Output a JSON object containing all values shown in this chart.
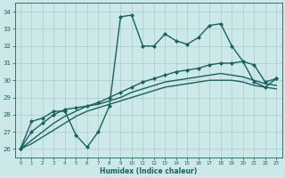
{
  "xlabel": "Humidex (Indice chaleur)",
  "background_color": "#cce8e8",
  "grid_color": "#aacccc",
  "line_color": "#1a6060",
  "xlim": [
    -0.5,
    23.5
  ],
  "ylim": [
    25.5,
    34.5
  ],
  "yticks": [
    26,
    27,
    28,
    29,
    30,
    31,
    32,
    33,
    34
  ],
  "xticks": [
    0,
    1,
    2,
    3,
    4,
    5,
    6,
    7,
    8,
    9,
    10,
    11,
    12,
    13,
    14,
    15,
    16,
    17,
    18,
    19,
    20,
    21,
    22,
    23
  ],
  "series": [
    [
      26.0,
      27.6,
      27.8,
      28.2,
      28.2,
      26.8,
      26.1,
      27.0,
      28.5,
      33.7,
      33.8,
      32.0,
      32.0,
      32.7,
      32.3,
      32.1,
      32.5,
      33.2,
      33.3,
      32.0,
      31.1,
      29.9,
      29.6,
      30.1
    ],
    [
      26.0,
      27.0,
      27.5,
      28.0,
      28.3,
      28.4,
      28.5,
      28.7,
      29.0,
      29.3,
      29.6,
      29.9,
      30.1,
      30.3,
      30.5,
      30.6,
      30.7,
      30.9,
      31.0,
      31.0,
      31.1,
      30.9,
      29.9,
      30.1
    ],
    [
      26.0,
      26.5,
      27.0,
      27.5,
      27.9,
      28.2,
      28.5,
      28.6,
      28.8,
      29.0,
      29.3,
      29.5,
      29.7,
      29.9,
      30.0,
      30.1,
      30.2,
      30.3,
      30.4,
      30.3,
      30.2,
      30.0,
      29.8,
      29.7
    ],
    [
      26.0,
      26.3,
      26.7,
      27.1,
      27.5,
      27.9,
      28.2,
      28.4,
      28.6,
      28.8,
      29.0,
      29.2,
      29.4,
      29.6,
      29.7,
      29.8,
      29.9,
      30.0,
      30.0,
      30.0,
      29.9,
      29.7,
      29.6,
      29.5
    ]
  ],
  "series_styles": [
    {
      "linestyle": "-",
      "linewidth": 1.0,
      "marker": "D",
      "markersize": 2.0
    },
    {
      "linestyle": "-",
      "linewidth": 1.0,
      "marker": "D",
      "markersize": 2.0
    },
    {
      "linestyle": "-",
      "linewidth": 1.0,
      "marker": null,
      "markersize": 0
    },
    {
      "linestyle": "-",
      "linewidth": 1.0,
      "marker": null,
      "markersize": 0
    }
  ]
}
